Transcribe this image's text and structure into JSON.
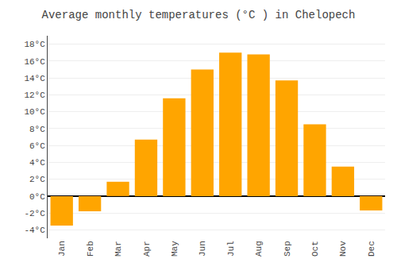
{
  "chart_data": {
    "type": "bar",
    "title": "Average monthly temperatures (°C ) in Chelopech",
    "categories": [
      "Jan",
      "Feb",
      "Mar",
      "Apr",
      "May",
      "Jun",
      "Jul",
      "Aug",
      "Sep",
      "Oct",
      "Nov",
      "Dec"
    ],
    "values": [
      -3.5,
      -1.8,
      1.7,
      6.7,
      11.6,
      15.0,
      17.0,
      16.8,
      13.7,
      8.5,
      3.5,
      -1.7
    ],
    "color": "#FFA500",
    "ylim": [
      -5,
      19
    ],
    "yticks": [
      {
        "value": -4,
        "label": "-4°C"
      },
      {
        "value": -2,
        "label": "-2°C"
      },
      {
        "value": 0,
        "label": "0°C"
      },
      {
        "value": 2,
        "label": "2°C"
      },
      {
        "value": 4,
        "label": "4°C"
      },
      {
        "value": 6,
        "label": "6°C"
      },
      {
        "value": 8,
        "label": "8°C"
      },
      {
        "value": 10,
        "label": "10°C"
      },
      {
        "value": 12,
        "label": "12°C"
      },
      {
        "value": 14,
        "label": "14°C"
      },
      {
        "value": 16,
        "label": "16°C"
      },
      {
        "value": 18,
        "label": "18°C"
      }
    ],
    "grid": true
  }
}
